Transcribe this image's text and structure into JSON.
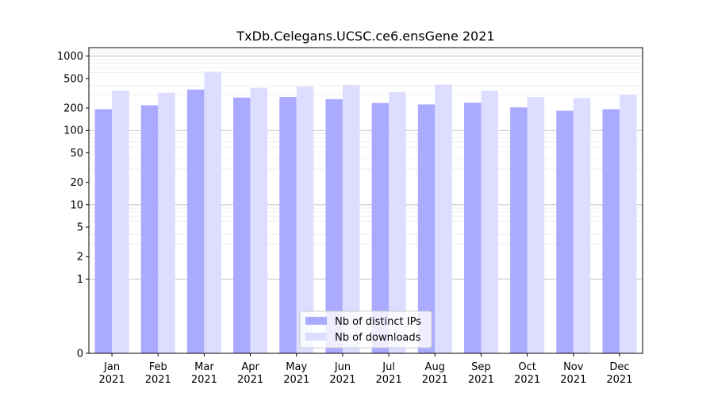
{
  "chart_data": {
    "type": "bar",
    "title": "TxDb.Celegans.UCSC.ce6.ensGene 2021",
    "xlabel": "",
    "ylabel": "",
    "y_scale": "symlog",
    "ylim": [
      0,
      1300
    ],
    "y_ticks": [
      0,
      1,
      2,
      5,
      10,
      20,
      50,
      100,
      200,
      500,
      1000
    ],
    "y_tick_labels": [
      "0",
      "1",
      "2",
      "5",
      "10",
      "20",
      "50",
      "100",
      "200",
      "500",
      "1000"
    ],
    "grid": true,
    "legend_position": "bottom-center",
    "categories": [
      "Jan\n2021",
      "Feb\n2021",
      "Mar\n2021",
      "Apr\n2021",
      "May\n2021",
      "Jun\n2021",
      "Jul\n2021",
      "Aug\n2021",
      "Sep\n2021",
      "Oct\n2021",
      "Nov\n2021",
      "Dec\n2021"
    ],
    "series": [
      {
        "name": "Nb of distinct IPs",
        "color": "#aaaaff",
        "values": [
          193,
          218,
          355,
          277,
          282,
          263,
          234,
          224,
          236,
          204,
          184,
          193
        ]
      },
      {
        "name": "Nb of downloads",
        "color": "#ddddff",
        "values": [
          344,
          322,
          615,
          375,
          390,
          408,
          330,
          415,
          343,
          281,
          273,
          303
        ]
      }
    ]
  }
}
